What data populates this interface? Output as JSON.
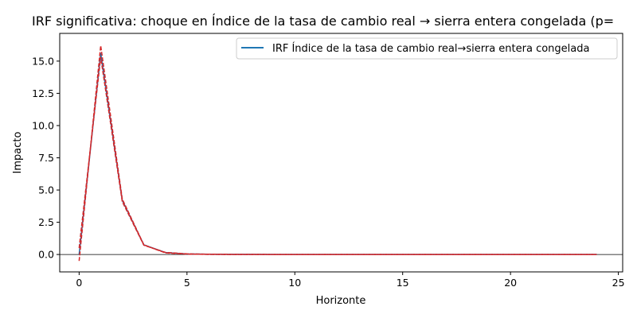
{
  "chart_data": {
    "type": "line",
    "title": "IRF significativa: choque en Índice de la tasa de cambio real → sierra entera congelada (p=",
    "xlabel": "Horizonte",
    "ylabel": "Impacto",
    "xlim": [
      -0.9,
      25.2
    ],
    "ylim": [
      -1.35,
      17.15
    ],
    "xticks": [
      0,
      5,
      10,
      15,
      20,
      25
    ],
    "yticks": [
      0.0,
      2.5,
      5.0,
      7.5,
      10.0,
      12.5,
      15.0
    ],
    "xtick_labels": [
      "0",
      "5",
      "10",
      "15",
      "20",
      "25"
    ],
    "ytick_labels": [
      "0.0",
      "2.5",
      "5.0",
      "7.5",
      "10.0",
      "12.5",
      "15.0"
    ],
    "zero_line": true,
    "grid": false,
    "legend_position": "top-right",
    "x": [
      0,
      1,
      2,
      3,
      4,
      5,
      6,
      7,
      8,
      9,
      10,
      11,
      12,
      13,
      14,
      15,
      16,
      17,
      18,
      19,
      20,
      21,
      22,
      23,
      24
    ],
    "series": [
      {
        "name": "IRF Índice de la tasa de cambio real→sierra entera congelada",
        "color": "#1f77b4",
        "style": "solid",
        "values": [
          0.0,
          15.6,
          4.2,
          0.75,
          0.15,
          0.04,
          0.02,
          0.01,
          0.01,
          0.0,
          0.0,
          0.0,
          0.0,
          0.0,
          0.0,
          0.0,
          0.0,
          0.0,
          0.0,
          0.0,
          0.0,
          0.0,
          0.0,
          0.0,
          0.0
        ]
      },
      {
        "color": "#d62728",
        "style": "dashed",
        "values": [
          -0.5,
          16.2,
          4.3,
          0.75,
          0.12,
          0.03,
          0.01,
          0.0,
          0.0,
          0.0,
          0.0,
          0.0,
          0.0,
          0.0,
          0.0,
          0.0,
          0.0,
          0.0,
          0.0,
          0.0,
          0.0,
          0.0,
          0.0,
          0.0,
          0.0
        ]
      },
      {
        "color": "#d62728",
        "style": "dashed",
        "values": [
          0.5,
          15.3,
          4.1,
          0.72,
          0.16,
          0.05,
          0.02,
          0.01,
          0.01,
          0.0,
          0.0,
          0.0,
          0.0,
          0.0,
          0.0,
          0.0,
          0.0,
          0.0,
          0.0,
          0.0,
          0.0,
          0.0,
          0.0,
          0.0,
          0.0
        ]
      }
    ]
  }
}
